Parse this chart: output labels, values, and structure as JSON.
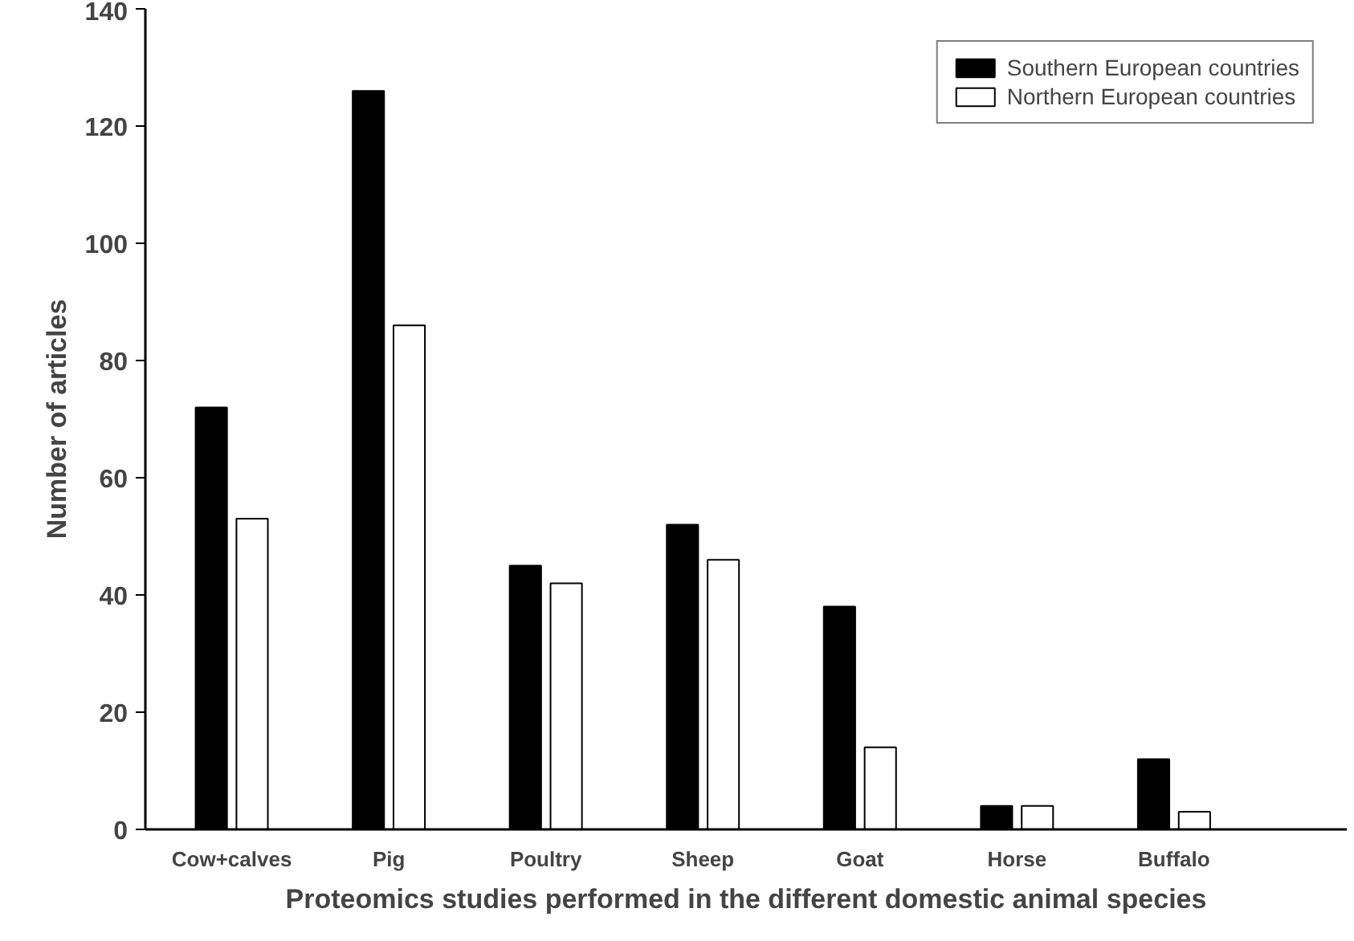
{
  "chart_data": {
    "type": "bar",
    "xlabel": "Proteomics studies performed in the different domestic animal species",
    "ylabel": "Number of articles",
    "categories": [
      "Cow+calves",
      "Pig",
      "Poultry",
      "Sheep",
      "Goat",
      "Horse",
      "Buffalo"
    ],
    "series": [
      {
        "name": "Southern European countries",
        "color": "#000000",
        "values": [
          72,
          126,
          45,
          52,
          38,
          4,
          12
        ]
      },
      {
        "name": "Northern European countries",
        "color": "#ffffff",
        "values": [
          53,
          86,
          42,
          46,
          14,
          4,
          3
        ]
      }
    ],
    "ylim": [
      0,
      140
    ],
    "yticks": [
      0,
      20,
      40,
      60,
      80,
      100,
      120,
      140
    ],
    "grid": false,
    "legend": "top right"
  }
}
